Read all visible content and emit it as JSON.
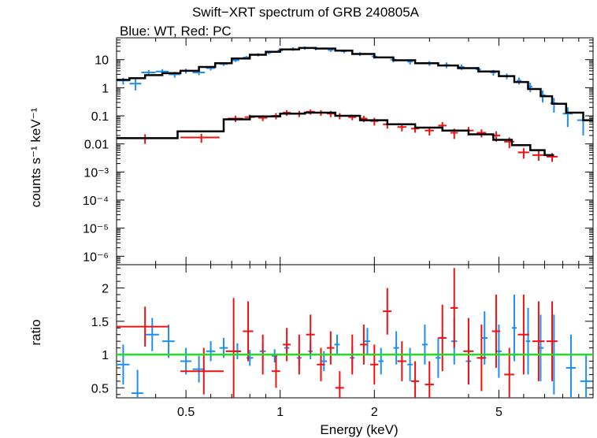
{
  "chart_data": [
    {
      "type": "scatter",
      "panel": "spectrum",
      "title": "Swift−XRT spectrum of GRB 240805A",
      "subtitle": "Blue: WT, Red: PC",
      "xlabel": "Energy (keV)",
      "ylabel": "counts s⁻¹ keV⁻¹",
      "xscale": "log",
      "yscale": "log",
      "xlim": [
        0.3,
        10
      ],
      "ylim": [
        5e-07,
        60
      ],
      "y_ticks": [
        {
          "v": 10,
          "label": "10"
        },
        {
          "v": 1,
          "label": "1"
        },
        {
          "v": 0.1,
          "label": "0.1"
        },
        {
          "v": 0.01,
          "label": "0.01"
        },
        {
          "v": 0.001,
          "label": "10⁻³"
        },
        {
          "v": 0.0001,
          "label": "10⁻⁴"
        },
        {
          "v": 1e-05,
          "label": "10⁻⁵"
        },
        {
          "v": 1e-06,
          "label": "10⁻⁶"
        }
      ],
      "series": [
        {
          "color": "#1f8fef",
          "points": [
            [
              0.315,
              1.8,
              0.015,
              0.5
            ],
            [
              0.345,
              1.4,
              0.015,
              0.6
            ],
            [
              0.38,
              3.5,
              0.02,
              0.8
            ],
            [
              0.42,
              3.8,
              0.02,
              0.8
            ],
            [
              0.46,
              3.0,
              0.02,
              0.7
            ],
            [
              0.5,
              4.0,
              0.02,
              0.8
            ],
            [
              0.55,
              3.5,
              0.025,
              0.7
            ],
            [
              0.6,
              5.0,
              0.02,
              0.9
            ],
            [
              0.66,
              7.0,
              0.02,
              1.0
            ],
            [
              0.72,
              9.5,
              0.02,
              1.2
            ],
            [
              0.78,
              12,
              0.02,
              1.5
            ],
            [
              0.85,
              15,
              0.02,
              2.0
            ],
            [
              0.92,
              18,
              0.02,
              2.5
            ],
            [
              1.0,
              21,
              0.02,
              3.0
            ],
            [
              1.1,
              24,
              0.02,
              3.5
            ],
            [
              1.2,
              26,
              0.02,
              3.5
            ],
            [
              1.3,
              25,
              0.02,
              3.5
            ],
            [
              1.45,
              22,
              0.03,
              3.0
            ],
            [
              1.6,
              20,
              0.03,
              3.0
            ],
            [
              1.8,
              16,
              0.03,
              2.5
            ],
            [
              2.0,
              13,
              0.04,
              2.0
            ],
            [
              2.3,
              10,
              0.05,
              2.0
            ],
            [
              2.6,
              8.5,
              0.05,
              1.8
            ],
            [
              3.0,
              7.5,
              0.06,
              1.5
            ],
            [
              3.4,
              6.5,
              0.06,
              1.5
            ],
            [
              3.8,
              5.5,
              0.08,
              1.2
            ],
            [
              4.3,
              4.5,
              0.08,
              1.0
            ],
            [
              4.8,
              3.5,
              0.1,
              0.8
            ],
            [
              5.3,
              2.6,
              0.1,
              0.6
            ],
            [
              5.8,
              1.8,
              0.1,
              0.5
            ],
            [
              6.3,
              1.1,
              0.1,
              0.4
            ],
            [
              6.9,
              0.55,
              0.15,
              0.25
            ],
            [
              7.5,
              0.28,
              0.2,
              0.15
            ],
            [
              8.3,
              0.12,
              0.3,
              0.08
            ],
            [
              9.3,
              0.07,
              0.4,
              0.05
            ]
          ]
        },
        {
          "color": "#ee1111",
          "points": [
            [
              0.37,
              0.016,
              0.07,
              0.006
            ],
            [
              0.56,
              0.017,
              0.08,
              0.006
            ],
            [
              0.72,
              0.08,
              0.04,
              0.02
            ],
            [
              0.8,
              0.09,
              0.03,
              0.02
            ],
            [
              0.88,
              0.085,
              0.03,
              0.02
            ],
            [
              0.97,
              0.1,
              0.03,
              0.025
            ],
            [
              1.05,
              0.13,
              0.03,
              0.03
            ],
            [
              1.15,
              0.12,
              0.04,
              0.03
            ],
            [
              1.25,
              0.14,
              0.04,
              0.03
            ],
            [
              1.35,
              0.13,
              0.04,
              0.03
            ],
            [
              1.45,
              0.12,
              0.04,
              0.03
            ],
            [
              1.55,
              0.1,
              0.05,
              0.025
            ],
            [
              1.7,
              0.09,
              0.05,
              0.02
            ],
            [
              1.85,
              0.08,
              0.05,
              0.02
            ],
            [
              2.0,
              0.065,
              0.06,
              0.02
            ],
            [
              2.2,
              0.05,
              0.07,
              0.015
            ],
            [
              2.45,
              0.04,
              0.08,
              0.012
            ],
            [
              2.7,
              0.035,
              0.08,
              0.01
            ],
            [
              3.0,
              0.03,
              0.1,
              0.01
            ],
            [
              3.3,
              0.045,
              0.1,
              0.015
            ],
            [
              3.6,
              0.025,
              0.1,
              0.01
            ],
            [
              4.0,
              0.03,
              0.15,
              0.01
            ],
            [
              4.4,
              0.025,
              0.15,
              0.008
            ],
            [
              4.9,
              0.02,
              0.15,
              0.008
            ],
            [
              5.4,
              0.012,
              0.2,
              0.005
            ],
            [
              6.0,
              0.005,
              0.25,
              0.002
            ],
            [
              6.7,
              0.004,
              0.3,
              0.0015
            ],
            [
              7.4,
              0.0035,
              0.3,
              0.0012
            ]
          ]
        }
      ],
      "models": [
        {
          "color": "#000000",
          "steps": [
            [
              0.3,
              0.33,
              1.9
            ],
            [
              0.33,
              0.37,
              2.2
            ],
            [
              0.37,
              0.42,
              2.8
            ],
            [
              0.42,
              0.48,
              3.3
            ],
            [
              0.48,
              0.55,
              4.0
            ],
            [
              0.55,
              0.62,
              5.5
            ],
            [
              0.62,
              0.7,
              7.5
            ],
            [
              0.7,
              0.8,
              11
            ],
            [
              0.8,
              0.9,
              15
            ],
            [
              0.9,
              1.0,
              19
            ],
            [
              1.0,
              1.15,
              23
            ],
            [
              1.15,
              1.3,
              26
            ],
            [
              1.3,
              1.5,
              25
            ],
            [
              1.5,
              1.7,
              21
            ],
            [
              1.7,
              2.0,
              16
            ],
            [
              2.0,
              2.3,
              12
            ],
            [
              2.3,
              2.7,
              9.5
            ],
            [
              2.7,
              3.2,
              7.5
            ],
            [
              3.2,
              3.7,
              6.2
            ],
            [
              3.7,
              4.3,
              5.0
            ],
            [
              4.3,
              5.0,
              3.8
            ],
            [
              5.0,
              5.6,
              2.6
            ],
            [
              5.6,
              6.2,
              1.6
            ],
            [
              6.2,
              6.8,
              0.9
            ],
            [
              6.8,
              7.4,
              0.5
            ],
            [
              7.4,
              8.2,
              0.27
            ],
            [
              8.2,
              9.3,
              0.13
            ],
            [
              9.3,
              10.0,
              0.07
            ]
          ]
        },
        {
          "color": "#000000",
          "steps": [
            [
              0.3,
              0.47,
              0.016
            ],
            [
              0.47,
              0.66,
              0.028
            ],
            [
              0.66,
              0.8,
              0.075
            ],
            [
              0.8,
              1.0,
              0.095
            ],
            [
              1.0,
              1.2,
              0.12
            ],
            [
              1.2,
              1.5,
              0.13
            ],
            [
              1.5,
              1.8,
              0.1
            ],
            [
              1.8,
              2.2,
              0.07
            ],
            [
              2.2,
              2.7,
              0.05
            ],
            [
              2.7,
              3.3,
              0.038
            ],
            [
              3.3,
              4.0,
              0.03
            ],
            [
              4.0,
              4.8,
              0.022
            ],
            [
              4.8,
              5.5,
              0.014
            ],
            [
              5.5,
              6.3,
              0.009
            ],
            [
              6.3,
              7.0,
              0.006
            ],
            [
              7.0,
              7.5,
              0.004
            ]
          ]
        }
      ]
    },
    {
      "type": "scatter",
      "panel": "ratio",
      "xlabel": "Energy (keV)",
      "ylabel": "ratio",
      "xscale": "log",
      "yscale": "linear",
      "xlim": [
        0.3,
        10
      ],
      "ylim": [
        0.35,
        2.35
      ],
      "x_ticks": [
        {
          "v": 0.5,
          "label": "0.5"
        },
        {
          "v": 1,
          "label": "1"
        },
        {
          "v": 2,
          "label": "2"
        },
        {
          "v": 5,
          "label": "5"
        }
      ],
      "y_ticks": [
        {
          "v": 2,
          "label": "2"
        },
        {
          "v": 1.5,
          "label": "1.5"
        },
        {
          "v": 1,
          "label": "1"
        },
        {
          "v": 0.5,
          "label": "0.5"
        }
      ],
      "reference_line": {
        "y": 1,
        "color": "#22dd22"
      },
      "series": [
        {
          "color": "#1f8fef",
          "points": [
            [
              0.315,
              0.85,
              0.015,
              0.3
            ],
            [
              0.35,
              0.42,
              0.015,
              0.35
            ],
            [
              0.39,
              1.3,
              0.02,
              0.25
            ],
            [
              0.44,
              1.2,
              0.02,
              0.25
            ],
            [
              0.5,
              0.9,
              0.02,
              0.2
            ],
            [
              0.55,
              0.78,
              0.025,
              0.2
            ],
            [
              0.6,
              1.05,
              0.02,
              0.15
            ],
            [
              0.66,
              1.1,
              0.02,
              0.15
            ],
            [
              0.73,
              1.05,
              0.02,
              0.12
            ],
            [
              0.8,
              0.95,
              0.02,
              0.12
            ],
            [
              0.88,
              1.05,
              0.02,
              0.12
            ],
            [
              0.96,
              0.98,
              0.02,
              0.1
            ],
            [
              1.05,
              1.1,
              0.02,
              0.12
            ],
            [
              1.15,
              0.95,
              0.02,
              0.12
            ],
            [
              1.25,
              1.05,
              0.02,
              0.12
            ],
            [
              1.38,
              0.9,
              0.03,
              0.15
            ],
            [
              1.52,
              1.15,
              0.03,
              0.15
            ],
            [
              1.7,
              0.95,
              0.03,
              0.18
            ],
            [
              1.9,
              1.2,
              0.04,
              0.2
            ],
            [
              2.1,
              0.9,
              0.04,
              0.2
            ],
            [
              2.35,
              1.1,
              0.05,
              0.25
            ],
            [
              2.6,
              0.85,
              0.05,
              0.25
            ],
            [
              2.9,
              1.15,
              0.06,
              0.3
            ],
            [
              3.2,
              0.95,
              0.06,
              0.3
            ],
            [
              3.6,
              1.2,
              0.08,
              0.35
            ],
            [
              4.0,
              0.9,
              0.08,
              0.35
            ],
            [
              4.5,
              1.25,
              0.1,
              0.4
            ],
            [
              5.0,
              1.05,
              0.1,
              0.4
            ],
            [
              5.6,
              1.4,
              0.1,
              0.5
            ],
            [
              6.2,
              1.2,
              0.1,
              0.5
            ],
            [
              6.8,
              1.1,
              0.15,
              0.5
            ],
            [
              7.5,
              1.0,
              0.2,
              0.6
            ],
            [
              8.5,
              0.8,
              0.3,
              0.5
            ],
            [
              9.5,
              0.6,
              0.4,
              0.4
            ]
          ]
        },
        {
          "color": "#ee1111",
          "points": [
            [
              0.37,
              1.42,
              0.07,
              0.3
            ],
            [
              0.57,
              0.75,
              0.09,
              0.35
            ],
            [
              0.71,
              1.05,
              0.04,
              0.8
            ],
            [
              0.79,
              1.35,
              0.03,
              0.45
            ],
            [
              0.88,
              1.0,
              0.03,
              0.3
            ],
            [
              0.97,
              0.75,
              0.03,
              0.25
            ],
            [
              1.05,
              1.15,
              0.03,
              0.25
            ],
            [
              1.15,
              1.0,
              0.04,
              0.3
            ],
            [
              1.25,
              1.3,
              0.04,
              0.3
            ],
            [
              1.35,
              0.85,
              0.04,
              0.25
            ],
            [
              1.45,
              1.1,
              0.04,
              0.25
            ],
            [
              1.55,
              0.5,
              0.05,
              0.25
            ],
            [
              1.7,
              1.0,
              0.05,
              0.3
            ],
            [
              1.85,
              1.15,
              0.05,
              0.3
            ],
            [
              2.0,
              0.85,
              0.06,
              0.3
            ],
            [
              2.2,
              1.65,
              0.07,
              0.35
            ],
            [
              2.45,
              0.9,
              0.08,
              0.3
            ],
            [
              2.7,
              0.6,
              0.08,
              0.3
            ],
            [
              3.0,
              0.55,
              0.1,
              0.35
            ],
            [
              3.3,
              1.25,
              0.1,
              0.5
            ],
            [
              3.6,
              1.7,
              0.1,
              0.6
            ],
            [
              4.0,
              1.05,
              0.15,
              0.5
            ],
            [
              4.4,
              0.95,
              0.15,
              0.5
            ],
            [
              4.9,
              1.35,
              0.15,
              0.55
            ],
            [
              5.4,
              0.7,
              0.2,
              0.4
            ],
            [
              6.0,
              1.3,
              0.25,
              0.6
            ],
            [
              6.7,
              1.2,
              0.3,
              0.6
            ],
            [
              7.4,
              1.2,
              0.3,
              0.6
            ]
          ]
        }
      ]
    }
  ]
}
